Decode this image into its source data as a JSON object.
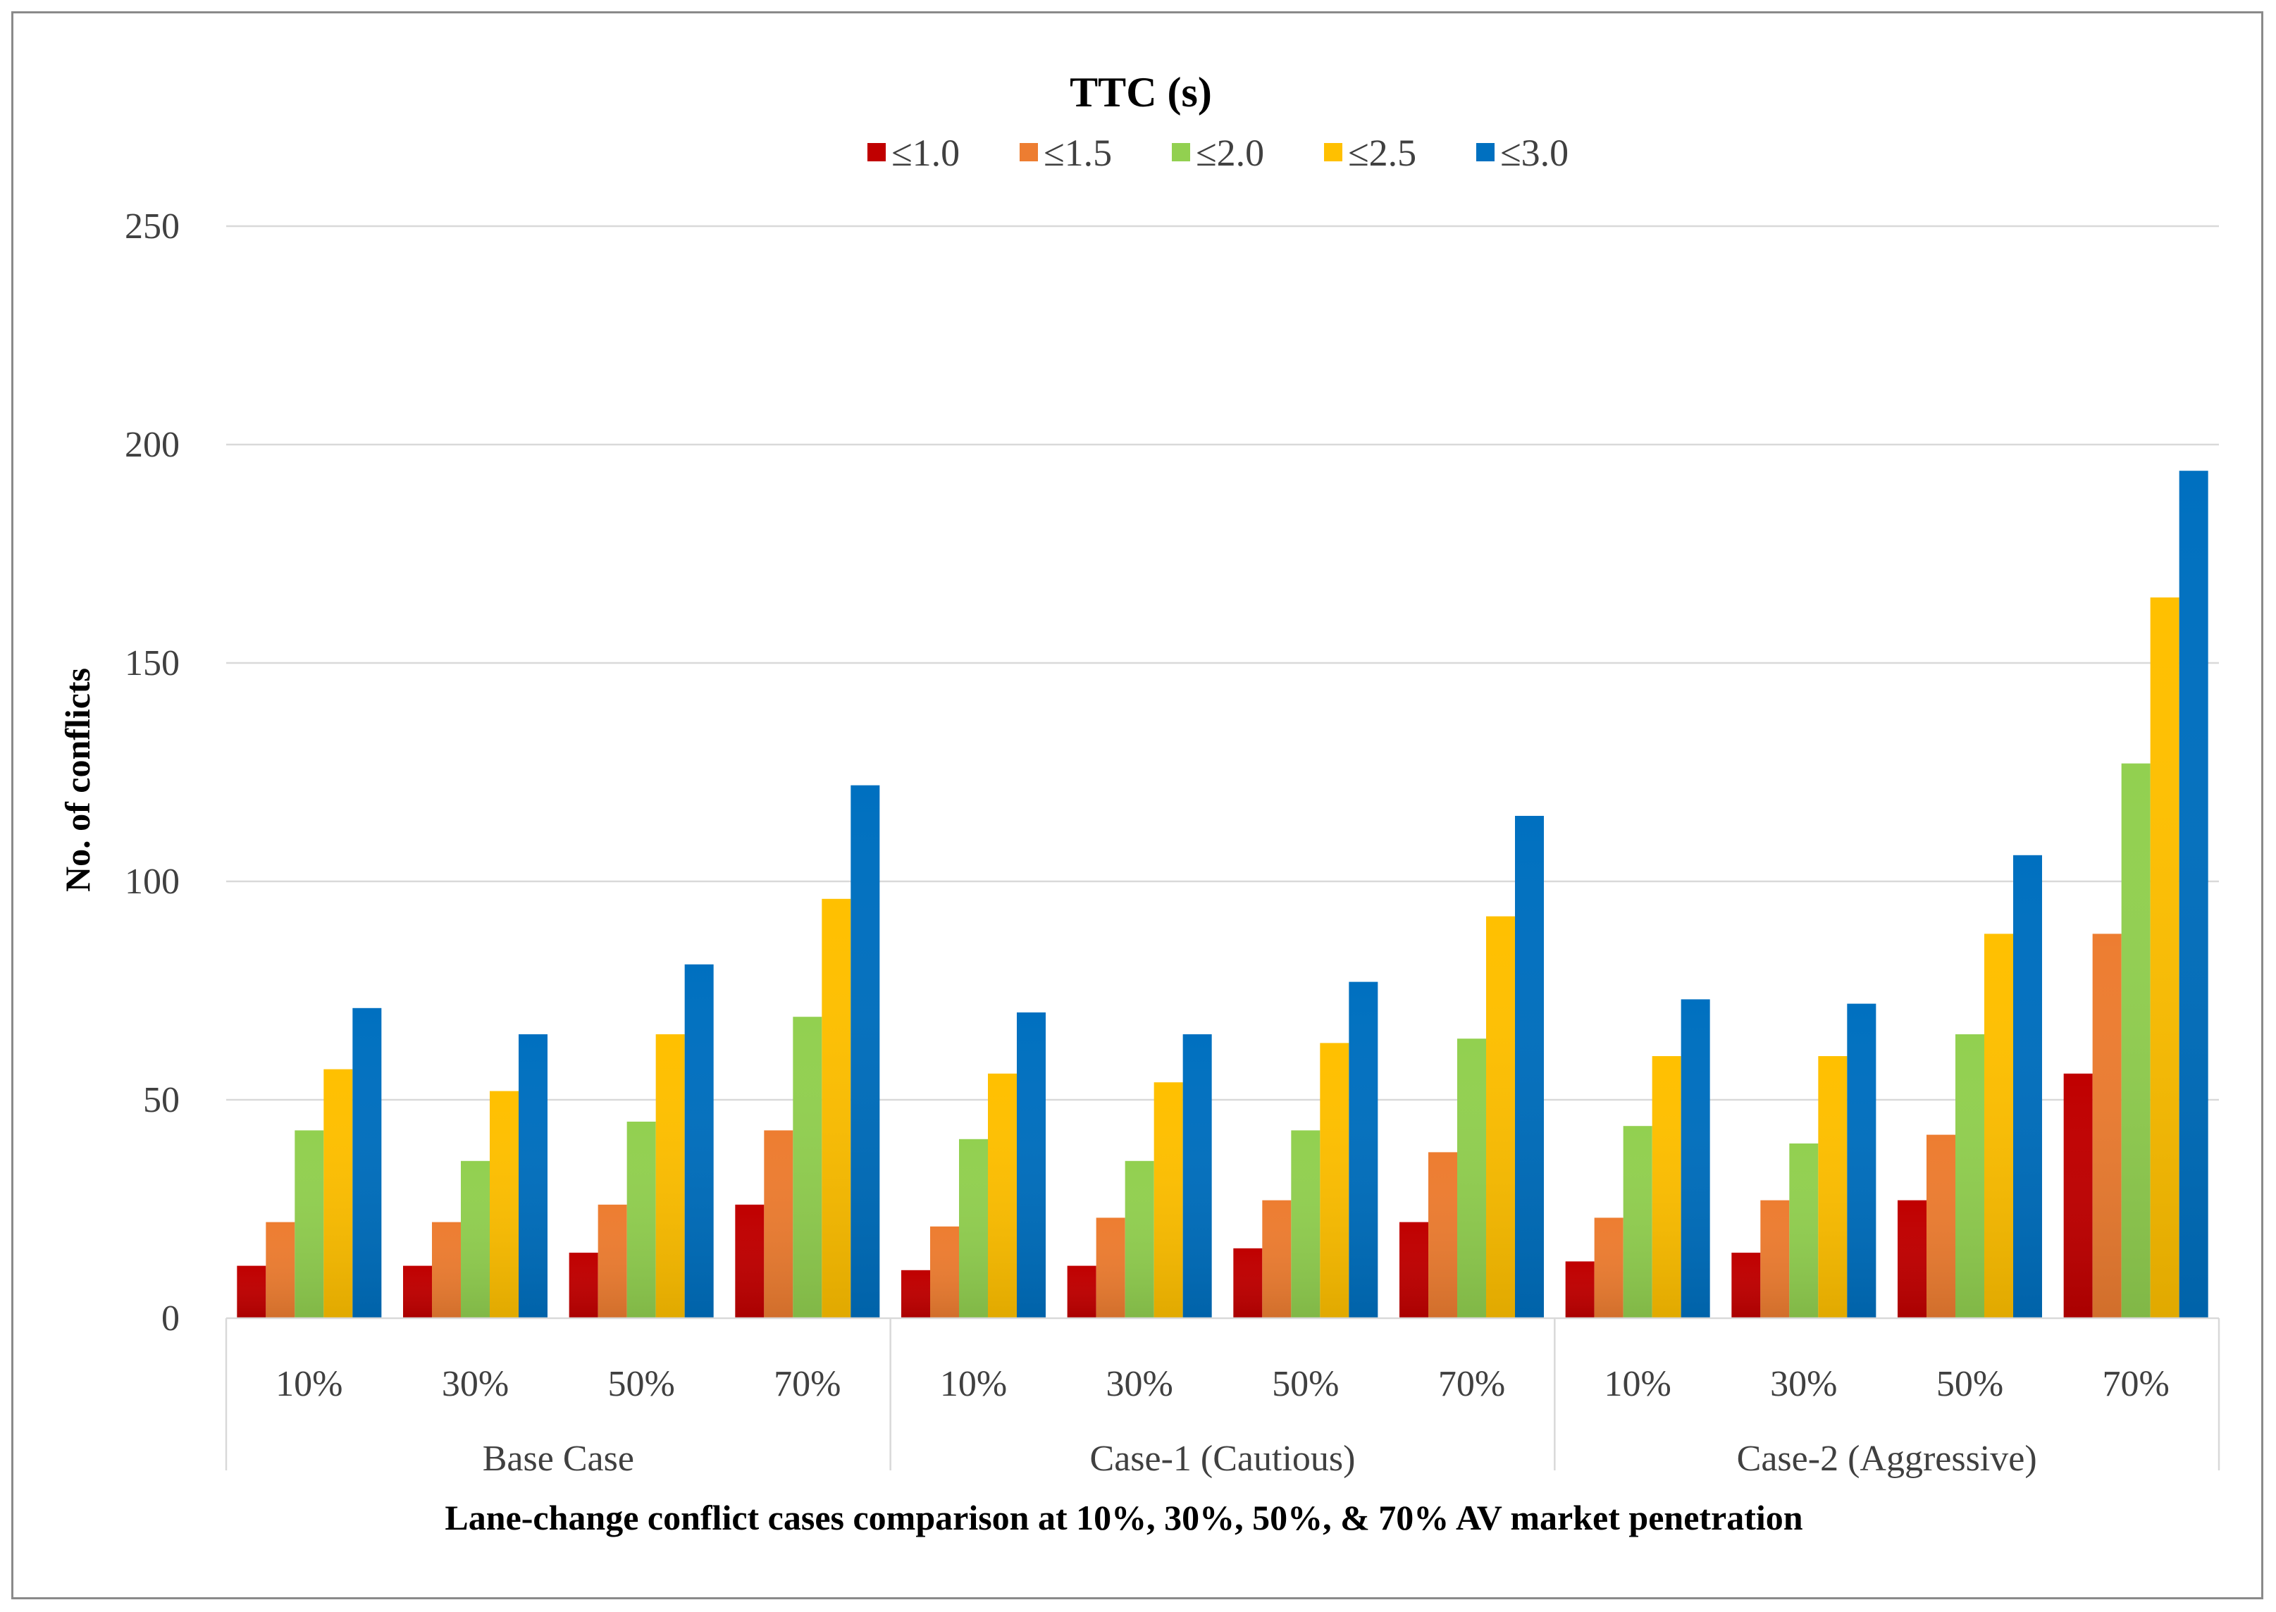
{
  "chart_data": {
    "type": "bar",
    "title": "TTC (s)",
    "xlabel": "Lane-change conflict cases comparison at 10%, 30%, 50%, & 70% AV market penetration",
    "ylabel": "No. of conflicts",
    "ylim": [
      0,
      250
    ],
    "yticks": [
      0,
      50,
      100,
      150,
      200,
      250
    ],
    "grid": true,
    "legend_position": "top-center",
    "groups": [
      {
        "name": "Base Case",
        "categories": [
          "10%",
          "30%",
          "50%",
          "70%"
        ]
      },
      {
        "name": "Case-1 (Cautious)",
        "categories": [
          "10%",
          "30%",
          "50%",
          "70%"
        ]
      },
      {
        "name": "Case-2 (Aggressive)",
        "categories": [
          "10%",
          "30%",
          "50%",
          "70%"
        ]
      }
    ],
    "series": [
      {
        "name": "≤1.0",
        "color": "#c00000",
        "values": [
          12,
          12,
          15,
          26,
          11,
          12,
          16,
          22,
          13,
          15,
          27,
          56
        ]
      },
      {
        "name": "≤1.5",
        "color": "#ed7d31",
        "values": [
          22,
          22,
          26,
          43,
          21,
          23,
          27,
          38,
          23,
          27,
          42,
          88
        ]
      },
      {
        "name": "≤2.0",
        "color": "#92d050",
        "values": [
          43,
          36,
          45,
          69,
          41,
          36,
          43,
          64,
          44,
          40,
          65,
          127
        ]
      },
      {
        "name": "≤2.5",
        "color": "#ffc000",
        "values": [
          57,
          52,
          65,
          96,
          56,
          54,
          63,
          92,
          60,
          60,
          88,
          165
        ]
      },
      {
        "name": "≤3.0",
        "color": "#0070c0",
        "values": [
          71,
          65,
          81,
          122,
          70,
          65,
          77,
          115,
          73,
          72,
          106,
          194
        ]
      }
    ]
  }
}
